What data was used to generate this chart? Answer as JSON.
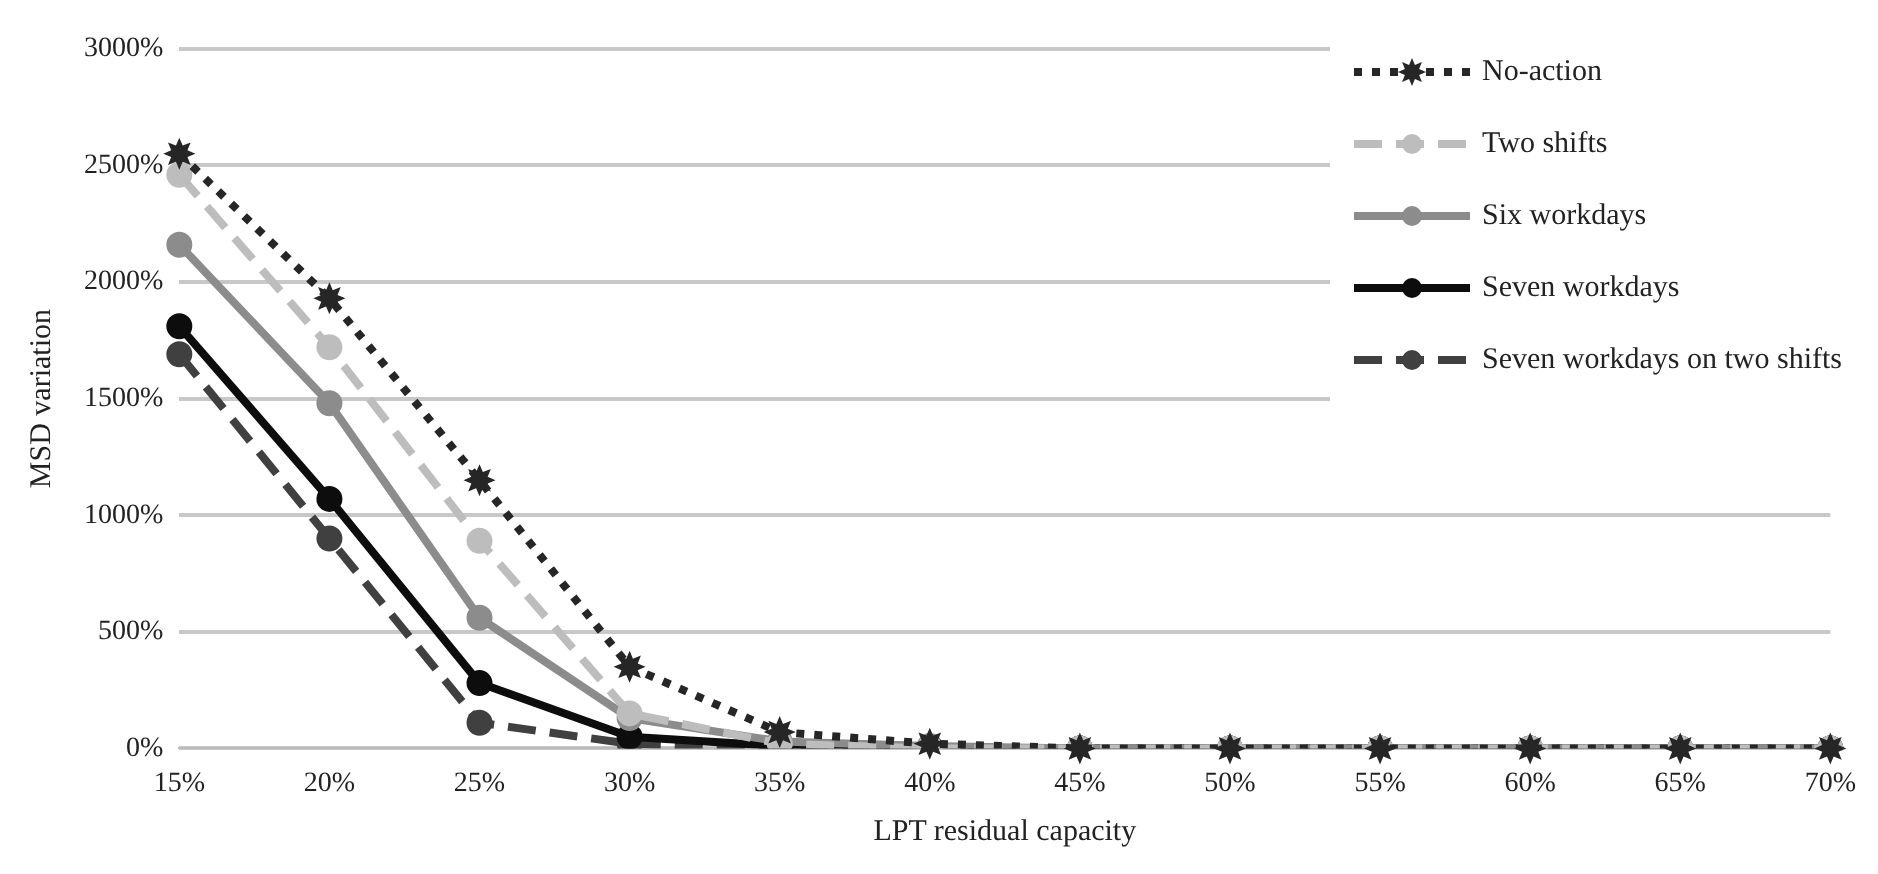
{
  "chart_data": {
    "type": "line",
    "xlabel": "LPT residual capacity",
    "ylabel": "MSD variation",
    "categories": [
      "15%",
      "20%",
      "25%",
      "30%",
      "35%",
      "40%",
      "45%",
      "50%",
      "55%",
      "60%",
      "65%",
      "70%"
    ],
    "ylim": [
      0,
      3000
    ],
    "yticks": [
      {
        "value": 0,
        "label": "0%"
      },
      {
        "value": 500,
        "label": "500%"
      },
      {
        "value": 1000,
        "label": "1000%"
      },
      {
        "value": 1500,
        "label": "1500%"
      },
      {
        "value": 2000,
        "label": "2000%"
      },
      {
        "value": 2500,
        "label": "2500%"
      },
      {
        "value": 3000,
        "label": "3000%"
      }
    ],
    "grid": "y",
    "legend": "top right",
    "series": [
      {
        "name": "No-action",
        "color": "#262626",
        "line_style": "dotted",
        "marker": "star",
        "values": [
          2550,
          1930,
          1150,
          350,
          70,
          20,
          0,
          0,
          0,
          0,
          0,
          0
        ]
      },
      {
        "name": "Two shifts",
        "color": "#bdbdbd",
        "line_style": "dashed",
        "marker": "circle",
        "values": [
          2460,
          1720,
          890,
          150,
          20,
          0,
          0,
          0,
          0,
          0,
          0,
          0
        ]
      },
      {
        "name": "Six workdays",
        "color": "#8c8c8c",
        "line_style": "solid",
        "marker": "circle",
        "values": [
          2160,
          1480,
          560,
          130,
          30,
          10,
          0,
          0,
          0,
          0,
          0,
          0
        ]
      },
      {
        "name": "Seven workdays",
        "color": "#0d0d0d",
        "line_style": "solid",
        "marker": "circle",
        "values": [
          1810,
          1070,
          280,
          50,
          10,
          0,
          0,
          0,
          0,
          0,
          0,
          0
        ]
      },
      {
        "name": "Seven workdays on two shifts",
        "color": "#404040",
        "line_style": "dashed",
        "marker": "circle",
        "values": [
          1690,
          900,
          110,
          20,
          0,
          0,
          0,
          0,
          0,
          0,
          0,
          0
        ]
      }
    ]
  }
}
